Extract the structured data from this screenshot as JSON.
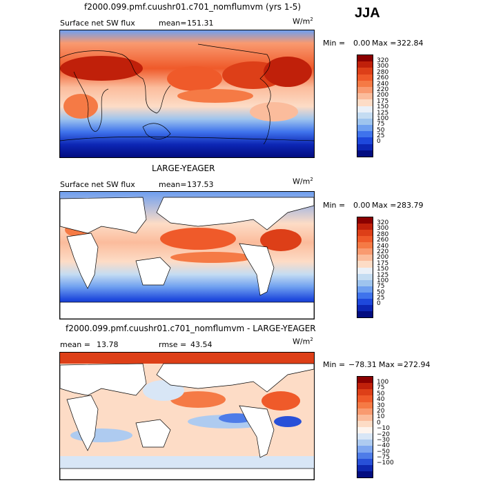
{
  "main_title": "f2000.099.pmf.cuushr01.c701_nomflumvm (yrs 1-5)",
  "season": "JJA",
  "panels": [
    {
      "title": "",
      "left_label": "Surface net SW flux",
      "mean_label": "mean=",
      "mean_value": "151.31",
      "units": "W/m",
      "units_exp": "2",
      "min_label": "Min =",
      "min_value": "0.00",
      "max_label": "Max =",
      "max_value": "322.84",
      "ticks": [
        "320",
        "300",
        "280",
        "260",
        "240",
        "220",
        "200",
        "175",
        "150",
        "125",
        "100",
        "75",
        "50",
        "25",
        "0"
      ]
    },
    {
      "title": "LARGE-YEAGER",
      "left_label": "Surface net SW flux",
      "mean_label": "mean=",
      "mean_value": "137.53",
      "units": "W/m",
      "units_exp": "2",
      "min_label": "Min =",
      "min_value": "0.00",
      "max_label": "Max =",
      "max_value": "283.79",
      "ticks": [
        "320",
        "300",
        "280",
        "260",
        "240",
        "220",
        "200",
        "175",
        "150",
        "125",
        "100",
        "75",
        "50",
        "25",
        "0"
      ]
    },
    {
      "title": "f2000.099.pmf.cuushr01.c701_nomflumvm - LARGE-YEAGER",
      "left_label": "mean =",
      "mean_value": "13.78",
      "rmse_label": "rmse =",
      "rmse_value": "43.54",
      "units": "W/m",
      "units_exp": "2",
      "min_label": "Min =",
      "min_value": "−78.31",
      "max_label": "Max =",
      "max_value": "272.94",
      "ticks": [
        "100",
        "75",
        "50",
        "40",
        "30",
        "20",
        "10",
        "0",
        "−10",
        "−20",
        "−30",
        "−40",
        "−50",
        "−75",
        "−100"
      ]
    }
  ],
  "colors": {
    "flux_scale": [
      "#8b0000",
      "#c0200a",
      "#dd3f18",
      "#ef5a2a",
      "#f57a45",
      "#f99a70",
      "#fbbc9c",
      "#fddcc6",
      "#eaf0f8",
      "#c4dcf2",
      "#9ec4ee",
      "#6e9ff0",
      "#3f73ec",
      "#1e48dc",
      "#0c26b4",
      "#030d80"
    ],
    "diff_scale": [
      "#8b0000",
      "#c0200a",
      "#dd3f18",
      "#ef5a2a",
      "#f57a45",
      "#f99a70",
      "#fbbc9c",
      "#fddcc6",
      "#fdf4ee",
      "#d8e6f6",
      "#aecbf0",
      "#7fa7f0",
      "#4e7ce8",
      "#2850d8",
      "#0e28b0",
      "#030d80"
    ]
  }
}
